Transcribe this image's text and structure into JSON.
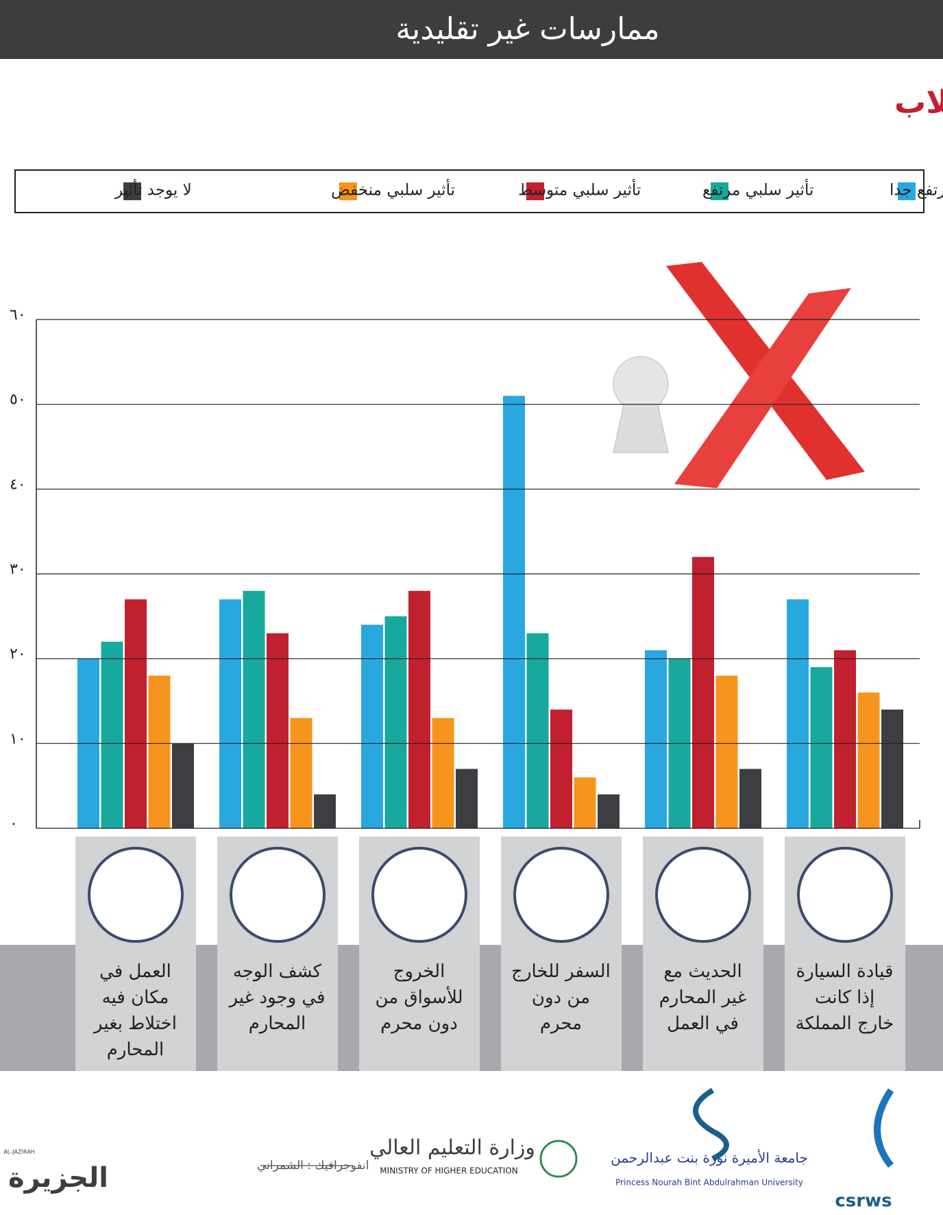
{
  "chart_data": {
    "type": "bar",
    "header": "ممارسات غير تقليدية",
    "title": "الممارسات غير التقليدية للمرأة من وجهة نظر الطلاب",
    "categories": [
      "العمل في\nمكان فيه\nاختلاط بغير\nالمحارم",
      "كشف الوجه\nفي وجود غير\nالمحارم",
      "الخروج\nللأسواق من\nدون محرم",
      "السفر للخارج\nمن دون\nمحرم",
      "الحديث مع\nغير المحارم\nفي العمل",
      "قيادة السيارة\nإذا كانت\nخارج المملكة"
    ],
    "series": [
      {
        "name": "تأثير سلبي مرتفع جدا",
        "color": "#29a8e0",
        "values": [
          20,
          27,
          24,
          51,
          21,
          27
        ]
      },
      {
        "name": "تأثير سلبي مرتفع",
        "color": "#17a99d",
        "values": [
          22,
          28,
          25,
          23,
          20,
          19
        ]
      },
      {
        "name": "تأثير سلبي متوسط",
        "color": "#c1202f",
        "values": [
          27,
          23,
          28,
          14,
          32,
          21
        ]
      },
      {
        "name": "تأثير سلبي منخفض",
        "color": "#f7941d",
        "values": [
          18,
          13,
          13,
          6,
          18,
          16
        ]
      },
      {
        "name": "لا يوجد تأثير",
        "color": "#3d3e41",
        "values": [
          10,
          4,
          7,
          4,
          7,
          14
        ]
      }
    ],
    "ylim": [
      0,
      60
    ],
    "yticks": [
      {
        "value": 0,
        "label": "٠"
      },
      {
        "value": 10,
        "label": "١٠"
      },
      {
        "value": 20,
        "label": "٢٠"
      },
      {
        "value": 30,
        "label": "٣٠"
      },
      {
        "value": 40,
        "label": "٤٠"
      },
      {
        "value": 50,
        "label": "٥٠"
      },
      {
        "value": 60,
        "label": "٦٠"
      }
    ],
    "grid": true
  },
  "footer": {
    "credit": "انفوجرافيك : الشمراني",
    "newspaper": "الجزيرة",
    "newspaper_en": "AL-JAZIRAH",
    "ministry": "وزارة التعليم العالي",
    "ministry_en": "MINISTRY OF HIGHER EDUCATION",
    "university": "جامعة الأميرة نورة بنت عبدالرحمن",
    "university_en": "Princess Nourah Bint Abdulrahman University",
    "center": "csrws"
  }
}
